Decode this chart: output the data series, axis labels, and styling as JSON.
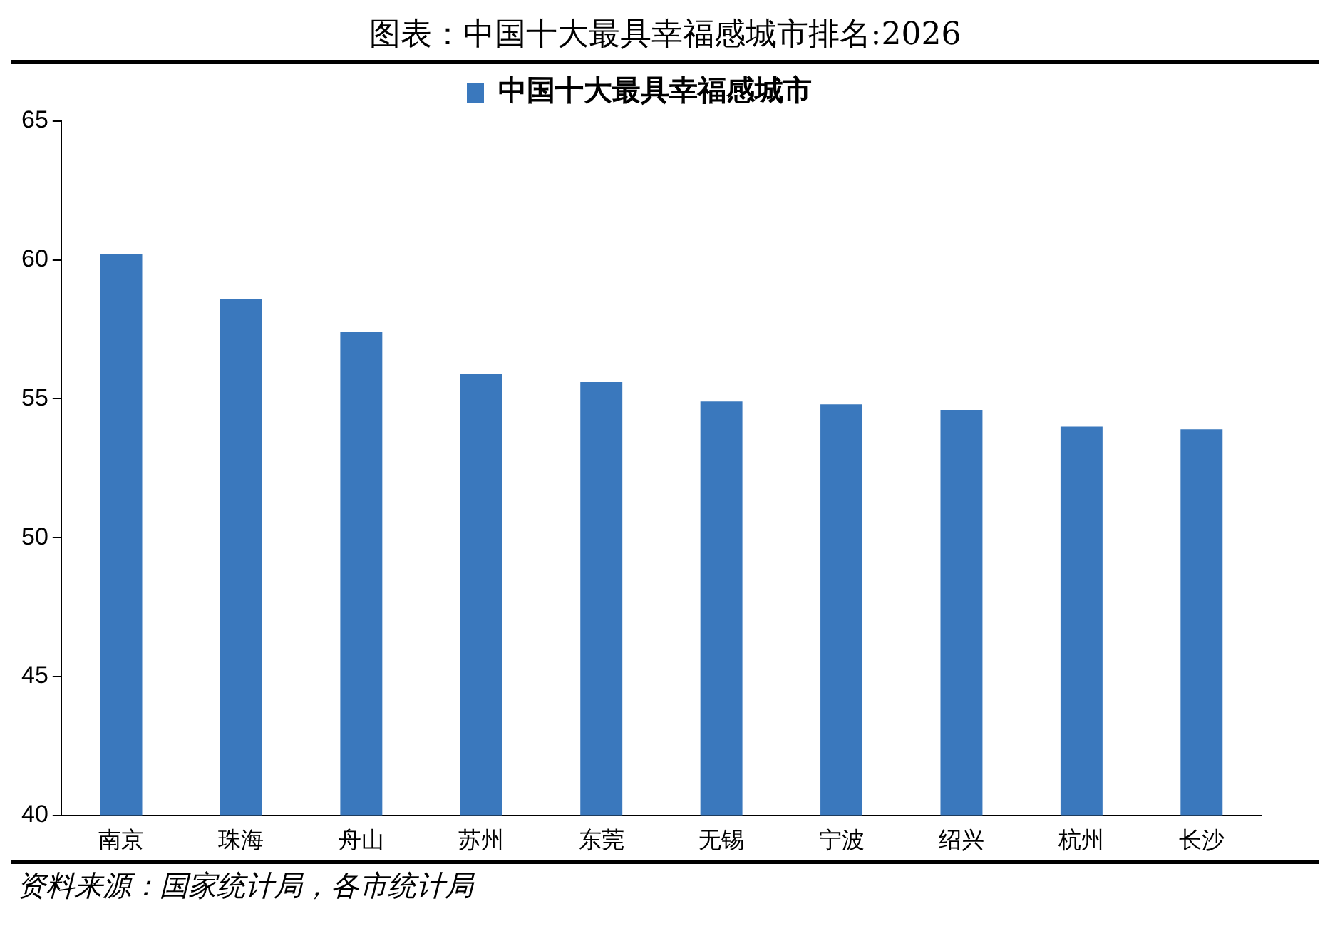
{
  "chart_data": {
    "type": "bar",
    "title": "图表：中国十大最具幸福感城市排名:2026",
    "categories": [
      "南京",
      "珠海",
      "舟山",
      "苏州",
      "东莞",
      "无锡",
      "宁波",
      "绍兴",
      "杭州",
      "长沙"
    ],
    "series": [
      {
        "name": "中国十大最具幸福感城市",
        "color": "#3a78bd",
        "values": [
          60.2,
          58.6,
          57.4,
          55.9,
          55.6,
          54.9,
          54.8,
          54.6,
          54.0,
          53.9
        ]
      }
    ],
    "ylim": [
      40,
      65
    ],
    "yticks": [
      40,
      45,
      50,
      55,
      60,
      65
    ],
    "grid": false,
    "legend": "top",
    "annotations": [
      "资料来源：国家统计局，各市统计局"
    ]
  }
}
